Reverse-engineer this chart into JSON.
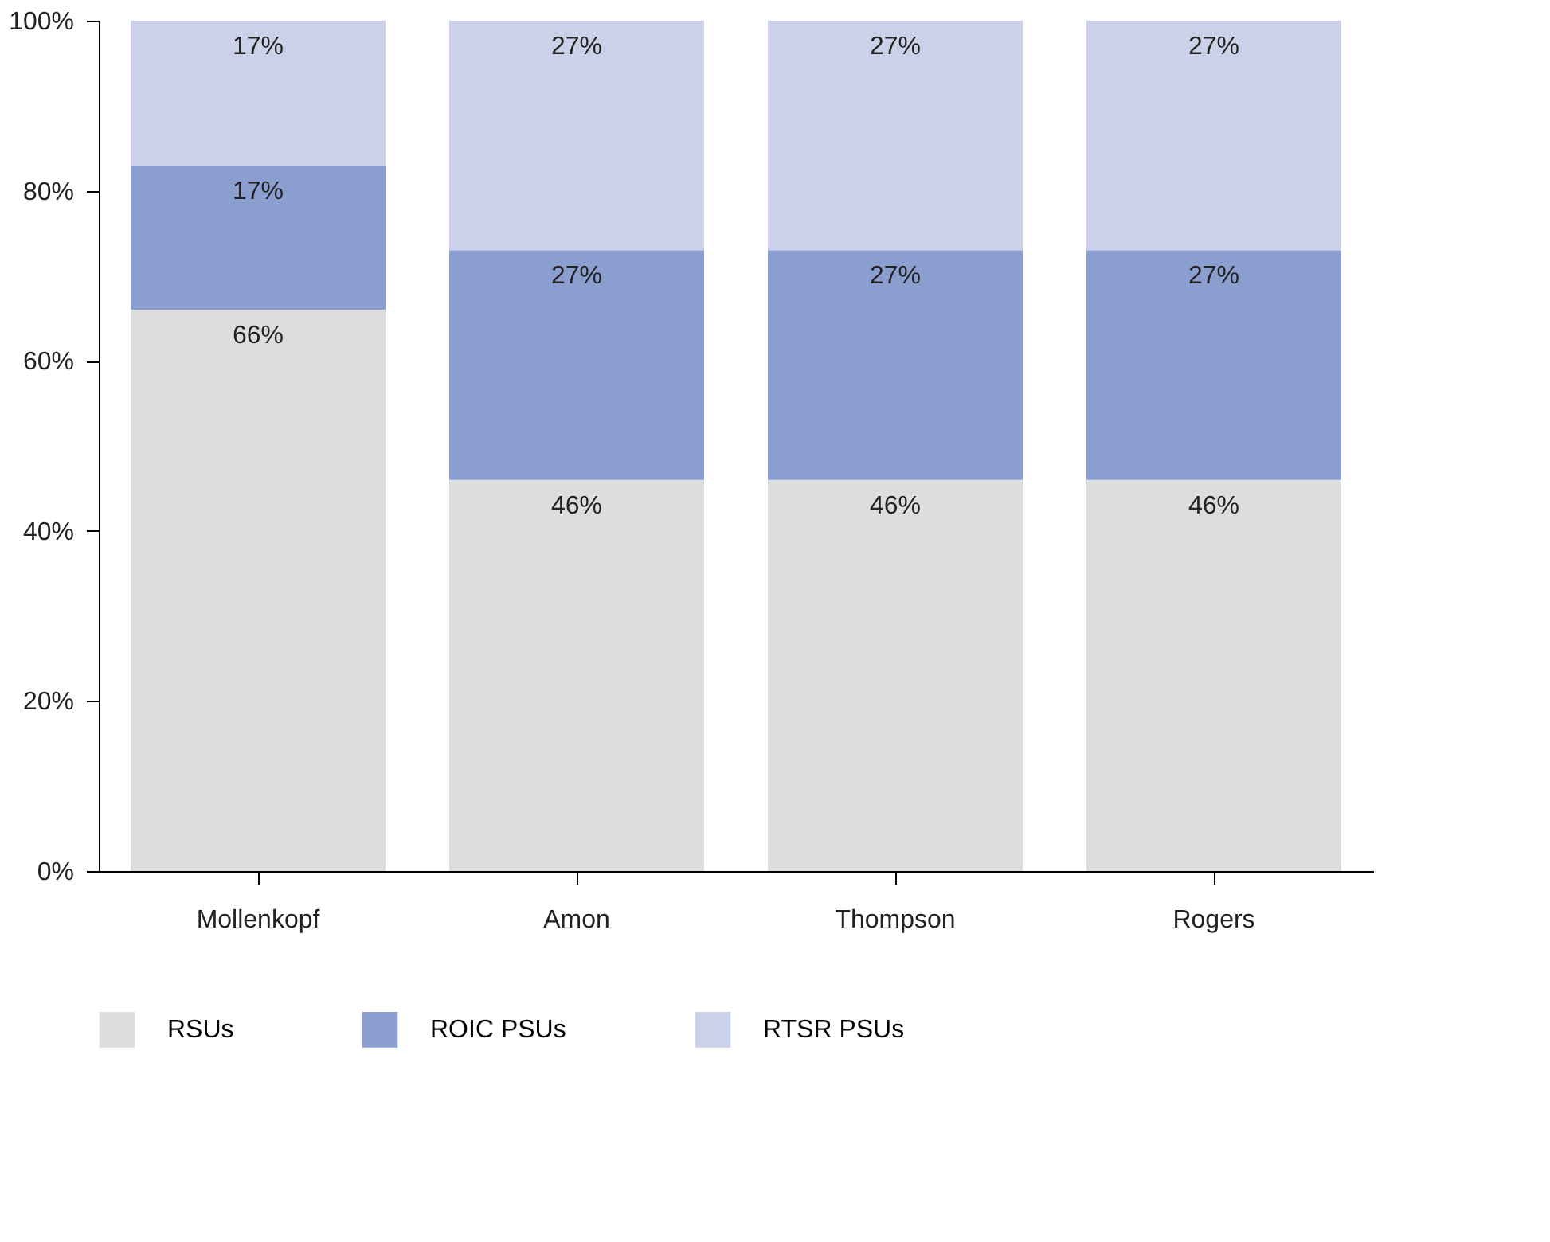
{
  "chart_data": {
    "type": "bar",
    "stacked": true,
    "categories": [
      "Mollenkopf",
      "Amon",
      "Thompson",
      "Rogers"
    ],
    "series": [
      {
        "name": "RSUs",
        "color": "#dcdddf",
        "values": [
          66,
          46,
          46,
          46
        ],
        "value_labels": [
          "66%",
          "46%",
          "46%",
          "46%"
        ]
      },
      {
        "name": "ROIC PSUs",
        "color": "#8a9ecf",
        "values": [
          17,
          27,
          27,
          27
        ],
        "value_labels": [
          "17%",
          "27%",
          "27%",
          "27%"
        ]
      },
      {
        "name": "RTSR PSUs",
        "color": "#cbd1e9",
        "values": [
          17,
          27,
          27,
          27
        ],
        "value_labels": [
          "17%",
          "27%",
          "27%",
          "27%"
        ]
      }
    ],
    "ylim": [
      0,
      100
    ],
    "yticks": [
      {
        "value": 0,
        "label": "0%"
      },
      {
        "value": 20,
        "label": "20%"
      },
      {
        "value": 40,
        "label": "40%"
      },
      {
        "value": 60,
        "label": "60%"
      },
      {
        "value": 80,
        "label": "80%"
      },
      {
        "value": 100,
        "label": "100%"
      }
    ],
    "grid": false,
    "legend": "bottom"
  }
}
